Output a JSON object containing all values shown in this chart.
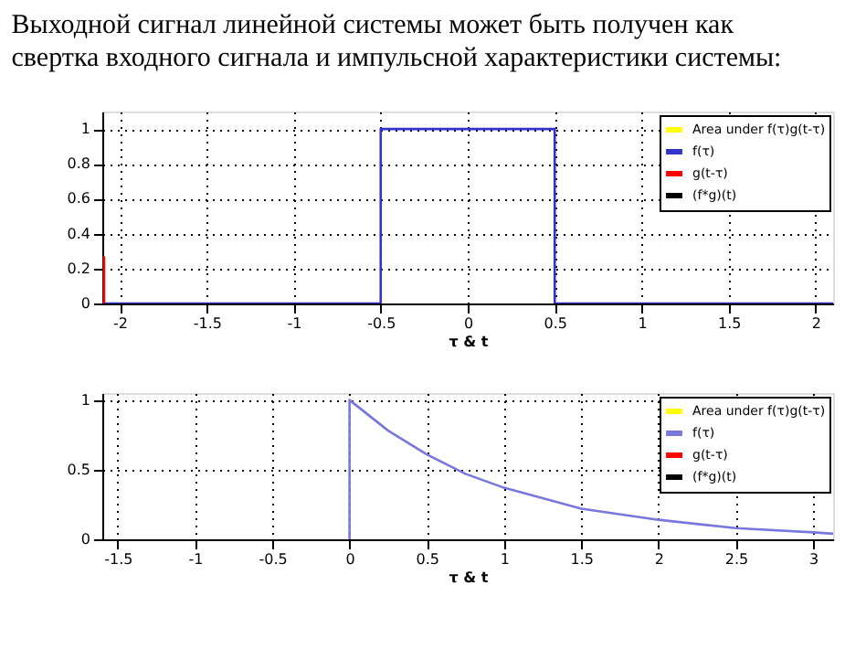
{
  "chart_data": [
    {
      "type": "line",
      "title": "Выходной сигнал линейной системы может быть получен как свертка входного сигнала и импульсной характеристики системы:",
      "xlabel": "τ & t",
      "xlim": [
        -2.1,
        2.1
      ],
      "xticks": [
        -2,
        -1.5,
        -1,
        -0.5,
        0,
        0.5,
        1,
        1.5,
        2
      ],
      "ylim": [
        0,
        1.1
      ],
      "yticks": [
        0,
        0.2,
        0.4,
        0.6,
        0.8,
        1
      ],
      "grid": true,
      "legend": "top right",
      "series": [
        {
          "name": "Area under f(τ)g(t-τ)",
          "type": "area",
          "color": "#ffff00"
        },
        {
          "name": "f(τ)",
          "color": "#3333cc",
          "x": [
            -2.1,
            -0.5,
            -0.5,
            0.5,
            0.5,
            2.1
          ],
          "values": [
            0,
            0,
            1,
            1,
            0,
            0
          ]
        },
        {
          "name": "g(t-τ)",
          "color": "#ff0000",
          "x": [
            -2.09,
            -2.09
          ],
          "values": [
            0,
            0.27
          ]
        },
        {
          "name": "(f*g)(t)",
          "color": "#000000"
        }
      ]
    },
    {
      "type": "line",
      "xlabel": "τ & t",
      "xlim": [
        -1.6,
        3.13
      ],
      "xticks": [
        -1.5,
        -1,
        -0.5,
        0,
        0.5,
        1,
        1.5,
        2,
        2.5,
        3
      ],
      "ylim": [
        0,
        1.05
      ],
      "yticks": [
        0,
        0.5,
        1
      ],
      "grid": true,
      "legend": "top right",
      "series": [
        {
          "name": "Area under f(τ)g(t-τ)",
          "type": "area",
          "color": "#ffff00"
        },
        {
          "name": "f(τ)",
          "color": "#7777dd",
          "x": [
            0,
            0,
            0.25,
            0.5,
            0.75,
            1,
            1.5,
            2,
            2.5,
            3,
            3.13
          ],
          "values": [
            0,
            1,
            0.78,
            0.61,
            0.47,
            0.37,
            0.22,
            0.14,
            0.08,
            0.05,
            0.04
          ]
        },
        {
          "name": "g(t-τ)",
          "color": "#ff0000"
        },
        {
          "name": "(f*g)(t)",
          "color": "#000000"
        }
      ]
    }
  ]
}
